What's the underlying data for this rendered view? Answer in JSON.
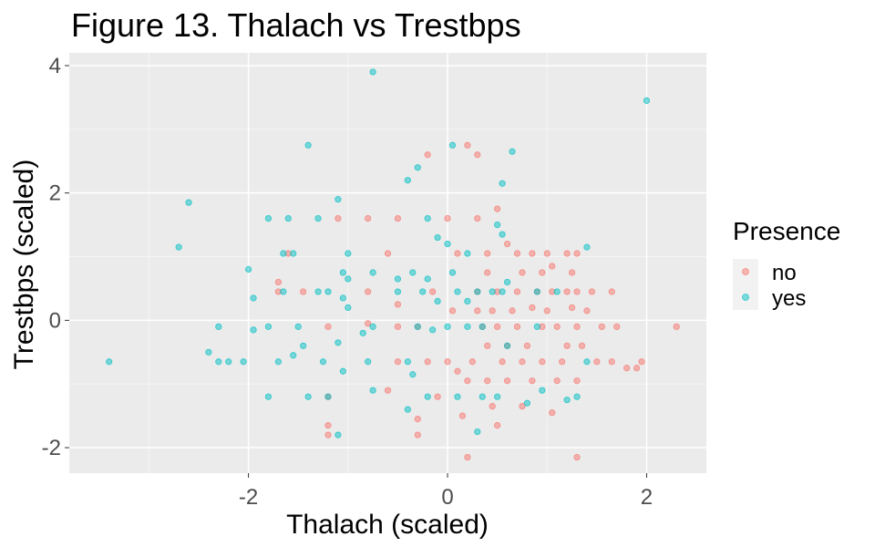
{
  "chart_data": {
    "type": "scatter",
    "title": "Figure 13. Thalach vs Trestbps",
    "xlabel": "Thalach (scaled)",
    "ylabel": "Trestbps (scaled)",
    "xlim": [
      -3.8,
      2.6
    ],
    "ylim": [
      -2.4,
      4.2
    ],
    "x_ticks": [
      -2,
      0,
      2
    ],
    "y_ticks": [
      -2,
      0,
      2,
      4
    ],
    "x_tick_labels": [
      "-2",
      "0",
      "2"
    ],
    "y_tick_labels": [
      "-2",
      "0",
      "2",
      "4"
    ],
    "grid": true,
    "legend": {
      "title": "Presence",
      "position": "right",
      "entries": [
        {
          "label": "no",
          "color": "#F8766D"
        },
        {
          "label": "yes",
          "color": "#00BFC4"
        }
      ]
    },
    "series": [
      {
        "name": "no",
        "color": "#F8766D",
        "points": [
          [
            0.2,
            2.75
          ],
          [
            -0.2,
            2.6
          ],
          [
            0.3,
            2.6
          ],
          [
            0.5,
            1.75
          ],
          [
            0.3,
            1.6
          ],
          [
            0.0,
            1.6
          ],
          [
            -0.5,
            1.6
          ],
          [
            -1.1,
            1.6
          ],
          [
            -0.8,
            1.6
          ],
          [
            0.6,
            1.2
          ],
          [
            0.7,
            1.05
          ],
          [
            0.85,
            1.05
          ],
          [
            1.0,
            1.05
          ],
          [
            1.2,
            1.05
          ],
          [
            1.3,
            1.05
          ],
          [
            -0.6,
            1.05
          ],
          [
            -1.6,
            1.05
          ],
          [
            0.1,
            1.05
          ],
          [
            0.4,
            1.05
          ],
          [
            0.4,
            0.75
          ],
          [
            0.75,
            0.75
          ],
          [
            0.95,
            0.75
          ],
          [
            1.05,
            0.85
          ],
          [
            1.25,
            0.75
          ],
          [
            0.3,
            0.45
          ],
          [
            0.5,
            0.45
          ],
          [
            0.7,
            0.45
          ],
          [
            0.9,
            0.45
          ],
          [
            1.05,
            0.45
          ],
          [
            1.2,
            0.45
          ],
          [
            1.3,
            0.45
          ],
          [
            1.45,
            0.45
          ],
          [
            1.65,
            0.45
          ],
          [
            -0.15,
            0.45
          ],
          [
            -1.45,
            0.45
          ],
          [
            -1.7,
            0.45
          ],
          [
            -1.7,
            0.6
          ],
          [
            -0.8,
            0.45
          ],
          [
            -0.5,
            0.25
          ],
          [
            0.05,
            0.15
          ],
          [
            0.3,
            0.15
          ],
          [
            0.45,
            0.15
          ],
          [
            0.65,
            0.15
          ],
          [
            0.85,
            0.2
          ],
          [
            1.0,
            0.15
          ],
          [
            1.25,
            0.2
          ],
          [
            1.4,
            0.15
          ],
          [
            0.35,
            -0.1
          ],
          [
            0.5,
            -0.1
          ],
          [
            0.7,
            -0.1
          ],
          [
            0.95,
            -0.1
          ],
          [
            1.1,
            -0.1
          ],
          [
            1.3,
            -0.1
          ],
          [
            1.55,
            -0.1
          ],
          [
            1.7,
            -0.1
          ],
          [
            2.3,
            -0.1
          ],
          [
            -0.3,
            -0.1
          ],
          [
            -0.5,
            -0.1
          ],
          [
            -1.2,
            -0.1
          ],
          [
            -0.8,
            -0.05
          ],
          [
            0.4,
            -0.4
          ],
          [
            0.6,
            -0.4
          ],
          [
            0.8,
            -0.4
          ],
          [
            1.2,
            -0.4
          ],
          [
            1.35,
            -0.4
          ],
          [
            0.0,
            -0.65
          ],
          [
            0.25,
            -0.65
          ],
          [
            0.55,
            -0.65
          ],
          [
            0.75,
            -0.65
          ],
          [
            0.95,
            -0.65
          ],
          [
            1.15,
            -0.65
          ],
          [
            1.5,
            -0.65
          ],
          [
            1.65,
            -0.65
          ],
          [
            1.95,
            -0.65
          ],
          [
            -0.5,
            -0.65
          ],
          [
            -0.2,
            -0.65
          ],
          [
            1.8,
            -0.75
          ],
          [
            1.9,
            -0.75
          ],
          [
            0.1,
            -0.8
          ],
          [
            0.2,
            -0.95
          ],
          [
            0.4,
            -0.95
          ],
          [
            0.6,
            -0.95
          ],
          [
            0.85,
            -0.95
          ],
          [
            1.1,
            -0.95
          ],
          [
            1.3,
            -0.95
          ],
          [
            -0.6,
            -1.1
          ],
          [
            -1.2,
            -1.2
          ],
          [
            -0.1,
            -1.2
          ],
          [
            0.15,
            -1.5
          ],
          [
            0.45,
            -1.35
          ],
          [
            0.75,
            -1.35
          ],
          [
            1.05,
            -1.45
          ],
          [
            -0.3,
            -1.55
          ],
          [
            -1.2,
            -1.65
          ],
          [
            -1.2,
            -1.8
          ],
          [
            0.5,
            -1.65
          ],
          [
            -0.3,
            -1.8
          ],
          [
            0.2,
            -2.15
          ],
          [
            1.3,
            -2.15
          ]
        ]
      },
      {
        "name": "yes",
        "color": "#00BFC4",
        "points": [
          [
            -0.75,
            3.9
          ],
          [
            2.0,
            3.45
          ],
          [
            -1.4,
            2.75
          ],
          [
            0.05,
            2.75
          ],
          [
            0.65,
            2.65
          ],
          [
            -2.6,
            1.85
          ],
          [
            -2.7,
            1.15
          ],
          [
            -1.1,
            1.9
          ],
          [
            -0.3,
            2.4
          ],
          [
            -0.4,
            2.2
          ],
          [
            0.55,
            2.15
          ],
          [
            -1.8,
            1.6
          ],
          [
            -1.6,
            1.6
          ],
          [
            -1.3,
            1.6
          ],
          [
            -0.2,
            1.6
          ],
          [
            0.5,
            1.5
          ],
          [
            -0.1,
            1.3
          ],
          [
            -1.65,
            1.05
          ],
          [
            -1.55,
            1.05
          ],
          [
            -1.0,
            1.05
          ],
          [
            0.2,
            1.05
          ],
          [
            0.0,
            1.2
          ],
          [
            0.55,
            1.35
          ],
          [
            1.4,
            1.15
          ],
          [
            -2.0,
            0.8
          ],
          [
            -1.05,
            0.75
          ],
          [
            -1.0,
            0.65
          ],
          [
            -0.75,
            0.75
          ],
          [
            -0.35,
            0.75
          ],
          [
            -0.2,
            0.65
          ],
          [
            0.05,
            0.75
          ],
          [
            -0.5,
            0.65
          ],
          [
            -1.65,
            0.45
          ],
          [
            -1.3,
            0.45
          ],
          [
            -1.2,
            0.45
          ],
          [
            -0.5,
            0.45
          ],
          [
            -0.25,
            0.45
          ],
          [
            0.1,
            0.45
          ],
          [
            0.3,
            0.45
          ],
          [
            0.45,
            0.45
          ],
          [
            0.55,
            0.45
          ],
          [
            0.6,
            0.6
          ],
          [
            0.9,
            0.45
          ],
          [
            1.1,
            0.45
          ],
          [
            -1.95,
            0.35
          ],
          [
            -1.05,
            0.35
          ],
          [
            -1.0,
            0.2
          ],
          [
            -0.1,
            0.3
          ],
          [
            0.2,
            0.3
          ],
          [
            -2.4,
            -0.5
          ],
          [
            -2.3,
            -0.1
          ],
          [
            -2.2,
            -0.65
          ],
          [
            -2.05,
            -0.65
          ],
          [
            -1.95,
            -0.15
          ],
          [
            -1.8,
            -0.1
          ],
          [
            -1.7,
            -0.65
          ],
          [
            -1.5,
            -0.1
          ],
          [
            -1.55,
            -0.55
          ],
          [
            -1.45,
            -0.4
          ],
          [
            -1.1,
            -0.35
          ],
          [
            -1.05,
            -0.8
          ],
          [
            -0.85,
            -0.2
          ],
          [
            -0.75,
            -0.1
          ],
          [
            -0.8,
            -0.65
          ],
          [
            -0.4,
            -0.65
          ],
          [
            -0.3,
            -0.1
          ],
          [
            -0.15,
            -0.15
          ],
          [
            0.0,
            -0.1
          ],
          [
            0.2,
            -0.1
          ],
          [
            0.35,
            -0.1
          ],
          [
            0.6,
            -0.4
          ],
          [
            0.9,
            -0.1
          ],
          [
            -3.4,
            -0.65
          ],
          [
            -2.3,
            -0.65
          ],
          [
            -1.25,
            -0.65
          ],
          [
            -0.35,
            -0.85
          ],
          [
            -0.2,
            -1.2
          ],
          [
            0.1,
            -1.2
          ],
          [
            0.35,
            -1.2
          ],
          [
            0.5,
            -1.2
          ],
          [
            0.8,
            -1.3
          ],
          [
            0.95,
            -1.1
          ],
          [
            1.2,
            -1.25
          ],
          [
            1.3,
            -1.2
          ],
          [
            1.4,
            -0.65
          ],
          [
            -1.8,
            -1.2
          ],
          [
            -1.4,
            -1.2
          ],
          [
            -1.2,
            -1.2
          ],
          [
            -0.75,
            -1.1
          ],
          [
            -0.4,
            -1.4
          ],
          [
            -1.1,
            -1.8
          ],
          [
            0.3,
            -1.75
          ]
        ]
      }
    ]
  }
}
